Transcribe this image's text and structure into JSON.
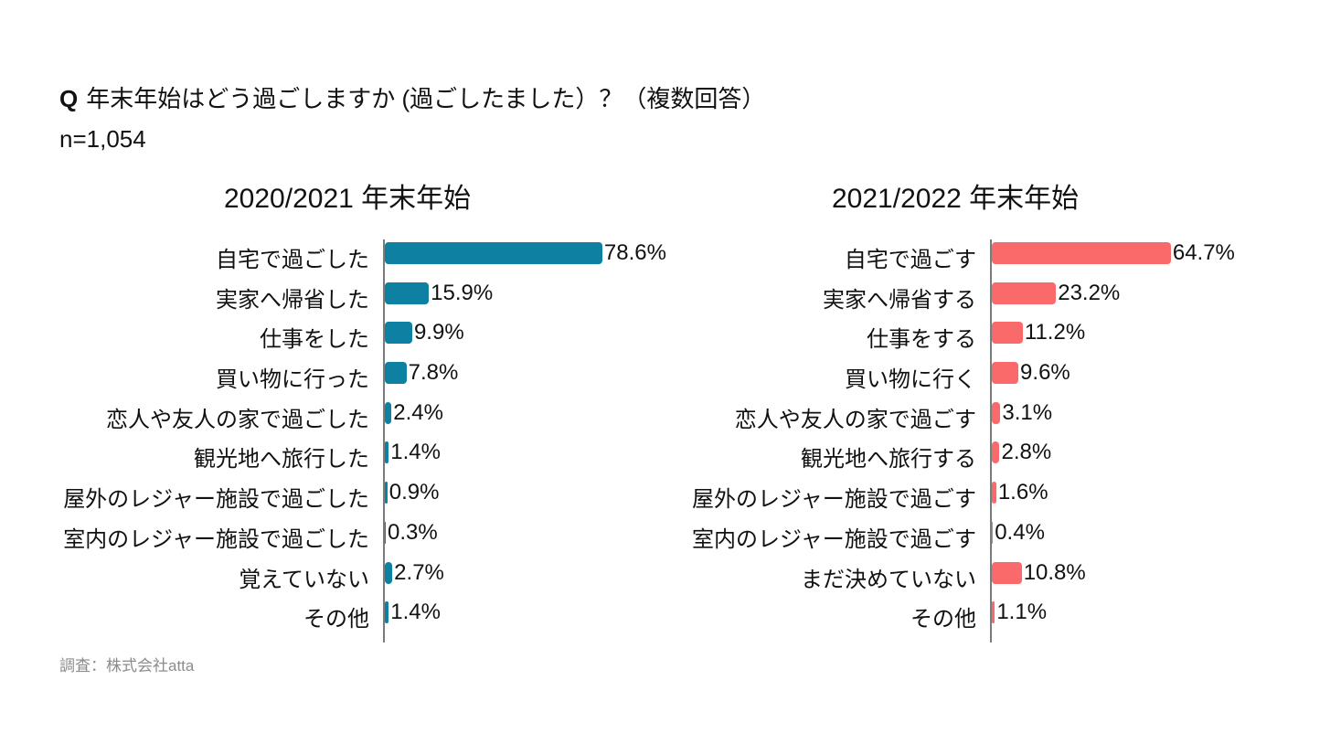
{
  "page": {
    "question_prefix": "Q",
    "question": "年末年始はどう過ごしますか (過ごしたました）？（複数回答）",
    "sample_size": "n=1,054",
    "source": "調査：株式会社atta",
    "background_color": "#ffffff",
    "text_color": "#111111",
    "axis_color": "#7b7b7b"
  },
  "chart_data": [
    {
      "type": "bar",
      "orientation": "horizontal",
      "title": "2020/2021 年末年始",
      "bar_color": "#0E80A2",
      "value_unit": "%",
      "value_labels_shown": true,
      "axis": {
        "min": 0,
        "max": 100,
        "gridlines": false,
        "tick_labels": false
      },
      "categories": [
        "自宅で過ごした",
        "実家へ帰省した",
        "仕事をした",
        "買い物に行った",
        "恋人や友人の家で過ごした",
        "観光地へ旅行した",
        "屋外のレジャー施設で過ごした",
        "室内のレジャー施設で過ごした",
        "覚えていない",
        "その他"
      ],
      "values": [
        78.6,
        15.9,
        9.9,
        7.8,
        2.4,
        1.4,
        0.9,
        0.3,
        2.7,
        1.4
      ]
    },
    {
      "type": "bar",
      "orientation": "horizontal",
      "title": "2021/2022 年末年始",
      "bar_color": "#FA6A6A",
      "value_unit": "%",
      "value_labels_shown": true,
      "axis": {
        "min": 0,
        "max": 100,
        "gridlines": false,
        "tick_labels": false
      },
      "categories": [
        "自宅で過ごす",
        "実家へ帰省する",
        "仕事をする",
        "買い物に行く",
        "恋人や友人の家で過ごす",
        "観光地へ旅行する",
        "屋外のレジャー施設で過ごす",
        "室内のレジャー施設で過ごす",
        "まだ決めていない",
        "その他"
      ],
      "values": [
        64.7,
        23.2,
        11.2,
        9.6,
        3.1,
        2.8,
        1.6,
        0.4,
        10.8,
        1.1
      ]
    }
  ]
}
